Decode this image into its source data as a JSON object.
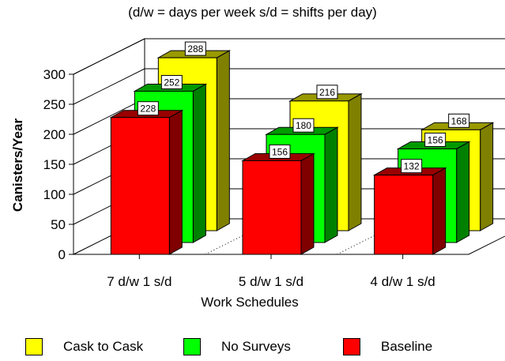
{
  "subtitle": "(d/w = days per week  s/d = shifts per day)",
  "chart_data": {
    "type": "bar",
    "xlabel": "Work Schedules",
    "ylabel": "Canisters/Year",
    "ylim": [
      0,
      300
    ],
    "yticks": [
      0,
      50,
      100,
      150,
      200,
      250,
      300
    ],
    "categories": [
      "7 d/w 1 s/d",
      "5 d/w 1 s/d",
      "4 d/w 1 s/d"
    ],
    "grid": true,
    "legend_position": "bottom",
    "series": [
      {
        "name": "Cask to Cask",
        "values": [
          288,
          216,
          168
        ],
        "color": "#FFFF00"
      },
      {
        "name": "No Surveys",
        "values": [
          252,
          180,
          156
        ],
        "color": "#00FF00"
      },
      {
        "name": "Baseline",
        "values": [
          228,
          156,
          132
        ],
        "color": "#FF0000"
      }
    ]
  }
}
